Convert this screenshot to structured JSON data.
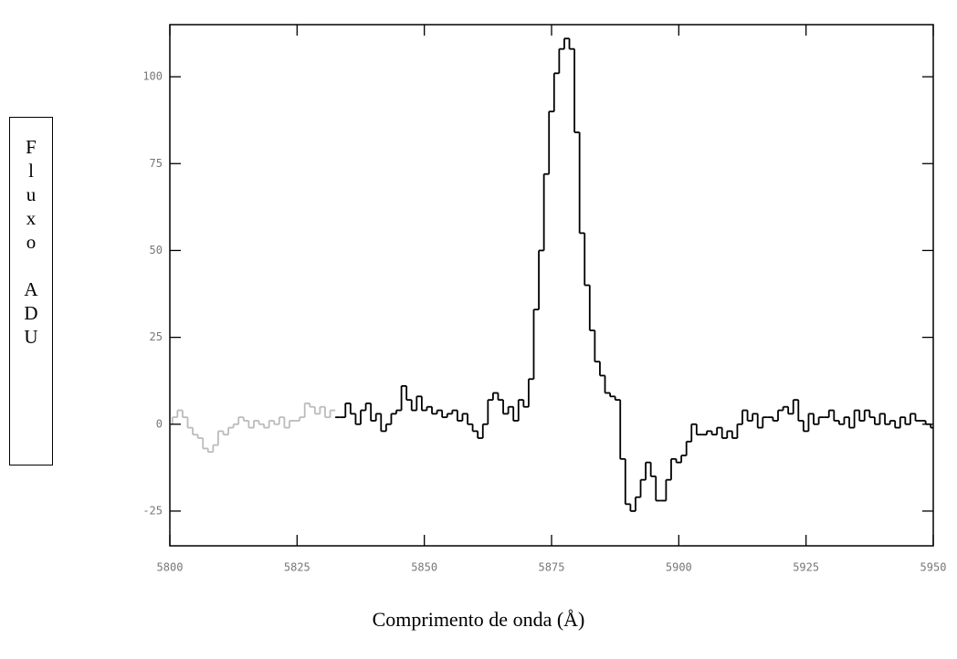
{
  "chart_data": {
    "type": "step",
    "xlabel": "Comprimento de onda (Å)",
    "ylabel": "Fluxo ADU",
    "xlim": [
      5800,
      5950
    ],
    "xticks": [
      5800,
      5825,
      5850,
      5875,
      5900,
      5925,
      5950
    ],
    "ylim": [
      -35,
      115
    ],
    "yticks": [
      -25,
      0,
      25,
      50,
      75,
      100
    ],
    "series": [
      {
        "color": "#bbbbbb",
        "x": [
          5800,
          5801,
          5802,
          5803,
          5804,
          5805,
          5806,
          5807,
          5808,
          5809,
          5810,
          5811,
          5812,
          5813,
          5814,
          5815,
          5816,
          5817,
          5818,
          5819,
          5820,
          5821,
          5822,
          5823,
          5824,
          5825,
          5826,
          5827,
          5828,
          5829,
          5830,
          5831,
          5832
        ],
        "values": [
          0,
          2,
          4,
          2,
          -1,
          -3,
          -4,
          -7,
          -8,
          -6,
          -2,
          -3,
          -1,
          0,
          2,
          1,
          -1,
          1,
          0,
          -1,
          1,
          0,
          2,
          -1,
          1,
          1,
          2,
          6,
          5,
          3,
          5,
          2,
          4
        ]
      },
      {
        "color": "#000000",
        "x": [
          5833,
          5834,
          5835,
          5836,
          5837,
          5838,
          5839,
          5840,
          5841,
          5842,
          5843,
          5844,
          5845,
          5846,
          5847,
          5848,
          5849,
          5850,
          5851,
          5852,
          5853,
          5854,
          5855,
          5856,
          5857,
          5858,
          5859,
          5860,
          5861,
          5862,
          5863,
          5864,
          5865,
          5866,
          5867,
          5868,
          5869,
          5870,
          5871,
          5872,
          5873,
          5874,
          5875,
          5876,
          5877,
          5878,
          5879,
          5880,
          5881,
          5882,
          5883,
          5884,
          5885,
          5886,
          5887,
          5888,
          5889,
          5890,
          5891,
          5892,
          5893,
          5894,
          5895,
          5896,
          5897,
          5898,
          5899,
          5900,
          5901,
          5902,
          5903,
          5904,
          5905,
          5906,
          5907,
          5908,
          5909,
          5910,
          5911,
          5912,
          5913,
          5914,
          5915,
          5916,
          5917,
          5918,
          5919,
          5920,
          5921,
          5922,
          5923,
          5924,
          5925,
          5926,
          5927,
          5928,
          5929,
          5930,
          5931,
          5932,
          5933,
          5934,
          5935,
          5936,
          5937,
          5938,
          5939,
          5940,
          5941,
          5942,
          5943,
          5944,
          5945,
          5946,
          5947,
          5948,
          5949,
          5950
        ],
        "values": [
          2,
          2,
          6,
          3,
          0,
          4,
          6,
          1,
          3,
          -2,
          0,
          3,
          4,
          11,
          7,
          4,
          8,
          4,
          5,
          3,
          4,
          2,
          3,
          4,
          1,
          3,
          0,
          -2,
          -4,
          0,
          7,
          9,
          7,
          3,
          5,
          1,
          7,
          5,
          13,
          33,
          50,
          72,
          90,
          101,
          108,
          111,
          108,
          84,
          55,
          40,
          27,
          18,
          14,
          9,
          8,
          7,
          -10,
          -23,
          -25,
          -21,
          -16,
          -11,
          -15,
          -22,
          -22,
          -16,
          -10,
          -11,
          -9,
          -5,
          0,
          -3,
          -3,
          -2,
          -3,
          -1,
          -4,
          -2,
          -4,
          0,
          4,
          1,
          3,
          -1,
          2,
          2,
          1,
          4,
          5,
          3,
          7,
          1,
          -2,
          3,
          0,
          2,
          2,
          4,
          1,
          0,
          2,
          -1,
          4,
          1,
          4,
          2,
          0,
          3,
          0,
          1,
          -1,
          2,
          0,
          3,
          1,
          1,
          0,
          -1
        ]
      }
    ]
  }
}
